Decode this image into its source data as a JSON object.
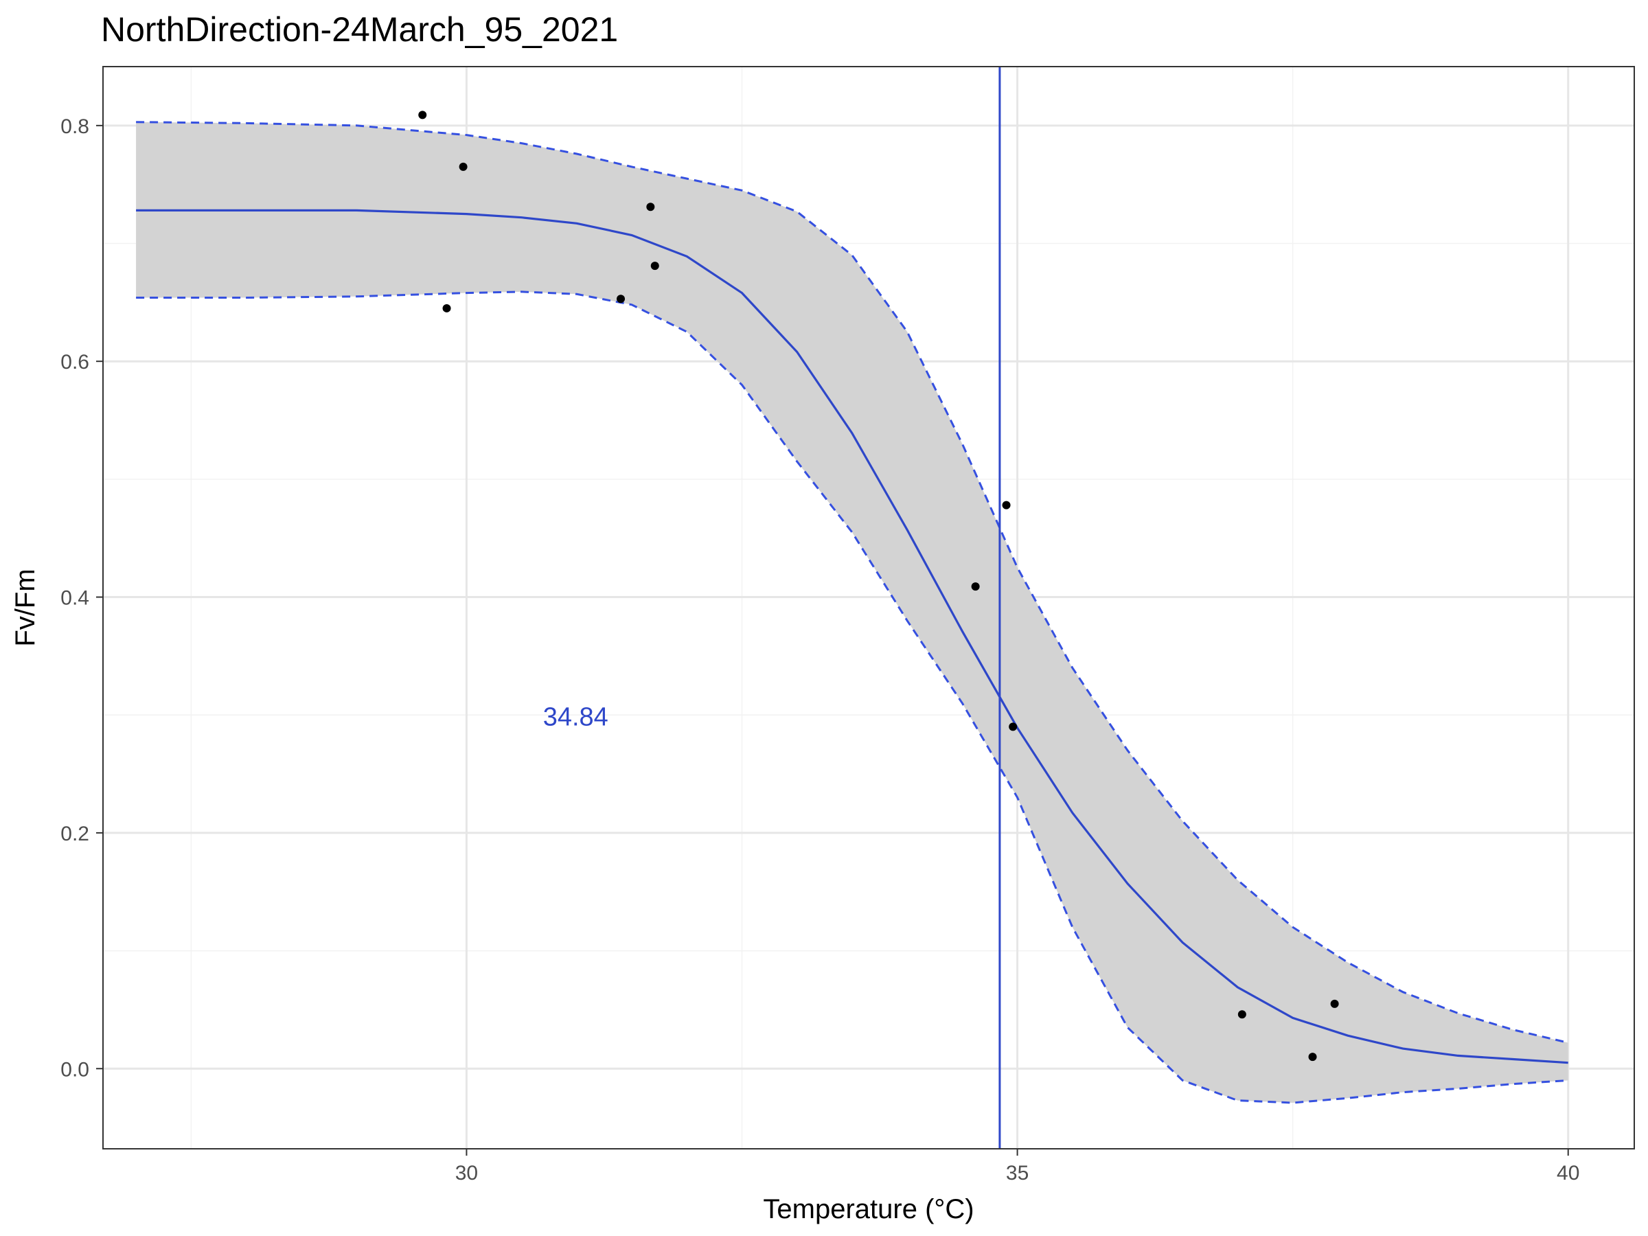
{
  "chart_data": {
    "type": "line",
    "title": "NorthDirection-24March_95_2021",
    "xlabel": "Temperature (°C)",
    "ylabel": "Fv/Fm",
    "xlim": [
      26.7,
      40.6
    ],
    "ylim": [
      -0.068,
      0.85
    ],
    "x_ticks": [
      30,
      35,
      40
    ],
    "x_tick_labels": [
      "30",
      "35",
      "40"
    ],
    "x_minor_ticks": [
      27.5,
      32.5,
      37.5
    ],
    "y_ticks": [
      0.0,
      0.2,
      0.4,
      0.6,
      0.8
    ],
    "y_tick_labels": [
      "0.0",
      "0.2",
      "0.4",
      "0.6",
      "0.8"
    ],
    "y_minor_ticks": [
      0.1,
      0.3,
      0.5,
      0.7
    ],
    "grid": true,
    "points": [
      {
        "x": 29.6,
        "y": 0.809
      },
      {
        "x": 29.82,
        "y": 0.645
      },
      {
        "x": 29.97,
        "y": 0.765
      },
      {
        "x": 31.4,
        "y": 0.653
      },
      {
        "x": 31.67,
        "y": 0.731
      },
      {
        "x": 31.71,
        "y": 0.681
      },
      {
        "x": 34.62,
        "y": 0.409
      },
      {
        "x": 34.9,
        "y": 0.478
      },
      {
        "x": 34.96,
        "y": 0.29
      },
      {
        "x": 37.04,
        "y": 0.046
      },
      {
        "x": 37.68,
        "y": 0.01
      },
      {
        "x": 37.88,
        "y": 0.055
      }
    ],
    "fit": {
      "name": "fit",
      "x": [
        27.0,
        28.0,
        29.0,
        30.0,
        30.5,
        31.0,
        31.5,
        32.0,
        32.5,
        33.0,
        33.5,
        34.0,
        34.5,
        35.0,
        35.5,
        36.0,
        36.5,
        37.0,
        37.5,
        38.0,
        38.5,
        39.0,
        39.5,
        40.0
      ],
      "y": [
        0.728,
        0.728,
        0.728,
        0.725,
        0.722,
        0.717,
        0.707,
        0.689,
        0.658,
        0.608,
        0.539,
        0.457,
        0.371,
        0.289,
        0.217,
        0.157,
        0.107,
        0.069,
        0.043,
        0.028,
        0.017,
        0.011,
        0.008,
        0.005
      ]
    },
    "ci_upper": {
      "name": "upper",
      "x": [
        27.0,
        28.0,
        29.0,
        30.0,
        30.5,
        31.0,
        31.5,
        32.0,
        32.5,
        33.0,
        33.5,
        34.0,
        34.5,
        35.0,
        35.5,
        36.0,
        36.5,
        37.0,
        37.5,
        38.0,
        38.5,
        39.0,
        39.5,
        40.0
      ],
      "y": [
        0.803,
        0.802,
        0.8,
        0.792,
        0.785,
        0.776,
        0.765,
        0.755,
        0.745,
        0.727,
        0.69,
        0.625,
        0.53,
        0.425,
        0.34,
        0.27,
        0.21,
        0.16,
        0.12,
        0.09,
        0.065,
        0.047,
        0.033,
        0.022
      ]
    },
    "ci_lower": {
      "name": "lower",
      "x": [
        27.0,
        28.0,
        29.0,
        30.0,
        30.5,
        31.0,
        31.5,
        32.0,
        32.5,
        33.0,
        33.5,
        34.0,
        34.5,
        35.0,
        35.5,
        36.0,
        36.5,
        37.0,
        37.5,
        38.0,
        38.5,
        39.0,
        39.5,
        40.0
      ],
      "y": [
        0.654,
        0.654,
        0.655,
        0.658,
        0.659,
        0.657,
        0.648,
        0.625,
        0.58,
        0.515,
        0.455,
        0.38,
        0.31,
        0.23,
        0.12,
        0.035,
        -0.01,
        -0.027,
        -0.029,
        -0.025,
        -0.02,
        -0.017,
        -0.013,
        -0.01
      ]
    },
    "vline": {
      "x": 34.84
    },
    "annotation": {
      "text": "34.84",
      "x": 30.99,
      "y": 0.297
    },
    "colors": {
      "line": "#2E47C9",
      "ribbon": "#D3D3D3",
      "ribbon_border": "#3550E0",
      "points": "#000000",
      "grid_major": "#E6E6E6",
      "grid_minor": "#F2F2F2",
      "axis_text": "#4D4D4D",
      "panel_border": "#333333"
    }
  }
}
